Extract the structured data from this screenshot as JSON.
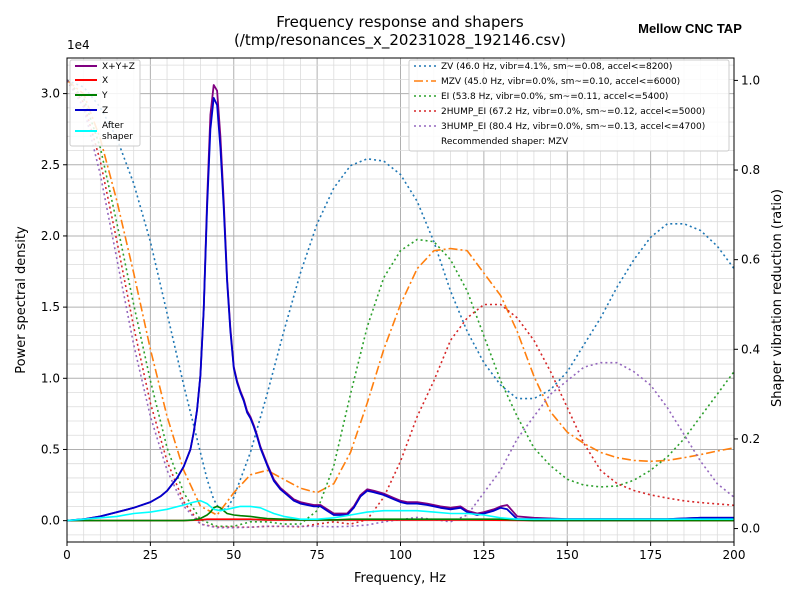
{
  "chart_data": {
    "type": "line",
    "title": "Frequency response and shapers",
    "subtitle": "(/tmp/resonances_x_20231028_192146.csv)",
    "brand": "Mellow CNC TAP",
    "xlabel": "Frequency, Hz",
    "ylabel": "Power spectral density",
    "y2label": "Shaper vibration reduction (ratio)",
    "y_scale_label": "1e4",
    "xlim": [
      0,
      200
    ],
    "ylim": [
      -0.15,
      3.25
    ],
    "y2lim": [
      -0.03,
      1.05
    ],
    "x_ticks": [
      "0",
      "25",
      "50",
      "75",
      "100",
      "125",
      "150",
      "175",
      "200"
    ],
    "y_ticks": [
      "0.0",
      "0.5",
      "1.0",
      "1.5",
      "2.0",
      "2.5",
      "3.0"
    ],
    "y2_ticks": [
      "0.0",
      "0.2",
      "0.4",
      "0.6",
      "0.8",
      "1.0"
    ],
    "grid": true,
    "legend_left": {
      "placement": "top-left",
      "entries": [
        {
          "name": "X+Y+Z",
          "color": "#800080"
        },
        {
          "name": "X",
          "color": "#ff0000"
        },
        {
          "name": "Y",
          "color": "#008000"
        },
        {
          "name": "Z",
          "color": "#0000cc"
        },
        {
          "name": "After",
          "name2": "shaper",
          "color": "#00ffff"
        }
      ]
    },
    "legend_right": {
      "placement": "top-right",
      "entries": [
        {
          "name": "ZV (46.0 Hz, vibr=4.1%, sm~=0.08, accel<=8200)",
          "color": "#1f77b4",
          "dash": "2,3"
        },
        {
          "name": "MZV (45.0 Hz, vibr=0.0%, sm~=0.10, accel<=6000)",
          "color": "#ff7f0e",
          "dash": "9,3,2,3"
        },
        {
          "name": "EI (53.8 Hz, vibr=0.0%, sm~=0.11, accel<=5400)",
          "color": "#2ca02c",
          "dash": "2,3"
        },
        {
          "name": "2HUMP_EI (67.2 Hz, vibr=0.0%, sm~=0.12, accel<=5000)",
          "color": "#d62728",
          "dash": "2,3"
        },
        {
          "name": "3HUMP_EI (80.4 Hz, vibr=0.0%, sm~=0.13, accel<=4700)",
          "color": "#9467bd",
          "dash": "2,3"
        }
      ],
      "note": "Recommended shaper: MZV"
    },
    "psd_series": [
      {
        "name": "X+Y+Z",
        "color": "#800080",
        "width": 1.8,
        "x": [
          0,
          5,
          10,
          15,
          20,
          25,
          28,
          30,
          33,
          35,
          37,
          38,
          39,
          40,
          41,
          42,
          43,
          44,
          45,
          46,
          47,
          48,
          49,
          50,
          51,
          52,
          53,
          54,
          55,
          56,
          57,
          58,
          60,
          62,
          64,
          66,
          68,
          70,
          72,
          74,
          76,
          78,
          80,
          82,
          84,
          86,
          88,
          90,
          92,
          95,
          98,
          100,
          102,
          105,
          108,
          110,
          112,
          115,
          118,
          120,
          123,
          125,
          128,
          130,
          132,
          135,
          140,
          150,
          160,
          170,
          180,
          190,
          195,
          200
        ],
        "y": [
          0,
          0.01,
          0.03,
          0.06,
          0.09,
          0.13,
          0.17,
          0.21,
          0.3,
          0.38,
          0.5,
          0.62,
          0.78,
          1.02,
          1.48,
          2.25,
          2.85,
          3.06,
          3.02,
          2.7,
          2.25,
          1.7,
          1.35,
          1.08,
          0.98,
          0.91,
          0.85,
          0.77,
          0.73,
          0.67,
          0.6,
          0.52,
          0.4,
          0.29,
          0.23,
          0.19,
          0.15,
          0.13,
          0.12,
          0.11,
          0.11,
          0.08,
          0.05,
          0.05,
          0.05,
          0.1,
          0.18,
          0.22,
          0.21,
          0.19,
          0.16,
          0.14,
          0.13,
          0.13,
          0.12,
          0.11,
          0.1,
          0.09,
          0.1,
          0.07,
          0.05,
          0.06,
          0.08,
          0.1,
          0.11,
          0.03,
          0.02,
          0.01,
          0.01,
          0.01,
          0.01,
          0.02,
          0.02,
          0.02
        ]
      },
      {
        "name": "X",
        "color": "#ff0000",
        "width": 1.6,
        "x": [
          0,
          10,
          20,
          30,
          35,
          40,
          42,
          45,
          48,
          50,
          55,
          60,
          65,
          70,
          75,
          80,
          100,
          120,
          140,
          160,
          180,
          200
        ],
        "y": [
          0,
          0,
          0,
          0,
          0,
          0.005,
          0.01,
          0.01,
          0.01,
          0.01,
          0.01,
          0.005,
          0.005,
          0.005,
          0.005,
          0.005,
          0.005,
          0.005,
          0,
          0,
          0,
          0
        ]
      },
      {
        "name": "Y",
        "color": "#008000",
        "width": 1.6,
        "x": [
          0,
          10,
          20,
          30,
          35,
          38,
          40,
          42,
          43,
          44,
          45,
          46,
          47,
          48,
          50,
          52,
          55,
          58,
          60,
          65,
          70,
          80,
          85,
          90,
          100,
          110,
          120,
          130,
          135,
          140,
          160,
          180,
          200
        ],
        "y": [
          0,
          0,
          0,
          0,
          0,
          0.005,
          0.015,
          0.04,
          0.06,
          0.09,
          0.1,
          0.09,
          0.07,
          0.05,
          0.04,
          0.035,
          0.03,
          0.02,
          0.015,
          0.01,
          0.005,
          0.005,
          0.01,
          0.01,
          0.01,
          0.01,
          0.01,
          0.01,
          0.005,
          0,
          0,
          0,
          0
        ]
      },
      {
        "name": "Z",
        "color": "#0000cc",
        "width": 1.8,
        "x": [
          0,
          5,
          10,
          15,
          20,
          25,
          28,
          30,
          33,
          35,
          37,
          38,
          39,
          40,
          41,
          42,
          43,
          44,
          45,
          46,
          47,
          48,
          49,
          50,
          51,
          52,
          53,
          54,
          55,
          56,
          57,
          58,
          60,
          62,
          64,
          66,
          68,
          70,
          72,
          74,
          76,
          78,
          80,
          82,
          84,
          86,
          88,
          90,
          92,
          95,
          98,
          100,
          102,
          105,
          108,
          110,
          112,
          115,
          118,
          120,
          123,
          125,
          128,
          130,
          132,
          135,
          140,
          150,
          160,
          170,
          180,
          190,
          195,
          200
        ],
        "y": [
          0,
          0.01,
          0.03,
          0.06,
          0.09,
          0.13,
          0.17,
          0.21,
          0.3,
          0.38,
          0.5,
          0.62,
          0.78,
          1.02,
          1.48,
          2.2,
          2.75,
          2.97,
          2.92,
          2.62,
          2.2,
          1.68,
          1.33,
          1.07,
          0.97,
          0.9,
          0.84,
          0.76,
          0.72,
          0.66,
          0.59,
          0.51,
          0.39,
          0.28,
          0.22,
          0.18,
          0.14,
          0.12,
          0.11,
          0.1,
          0.1,
          0.07,
          0.04,
          0.04,
          0.04,
          0.09,
          0.17,
          0.21,
          0.2,
          0.18,
          0.15,
          0.13,
          0.12,
          0.12,
          0.11,
          0.1,
          0.09,
          0.08,
          0.09,
          0.06,
          0.04,
          0.05,
          0.07,
          0.09,
          0.08,
          0.01,
          0.01,
          0.01,
          0.01,
          0.01,
          0.01,
          0.02,
          0.02,
          0.02
        ]
      },
      {
        "name": "After shaper",
        "color": "#00ffff",
        "width": 1.6,
        "x": [
          0,
          5,
          10,
          15,
          20,
          25,
          30,
          35,
          38,
          40,
          42,
          44,
          46,
          48,
          50,
          52,
          55,
          58,
          60,
          62,
          65,
          70,
          75,
          80,
          85,
          90,
          95,
          100,
          105,
          110,
          115,
          120,
          125,
          130,
          135,
          140,
          150,
          160,
          170,
          180,
          190,
          200
        ],
        "y": [
          0,
          0.01,
          0.02,
          0.03,
          0.05,
          0.06,
          0.08,
          0.11,
          0.13,
          0.14,
          0.12,
          0.08,
          0.07,
          0.08,
          0.09,
          0.1,
          0.1,
          0.09,
          0.07,
          0.05,
          0.03,
          0.01,
          0.01,
          0.02,
          0.04,
          0.06,
          0.07,
          0.07,
          0.07,
          0.06,
          0.05,
          0.05,
          0.04,
          0.02,
          0.01,
          0.01,
          0.01,
          0.01,
          0.01,
          0.01,
          0.01,
          0.01
        ]
      }
    ],
    "shaper_series": [
      {
        "name": "ZV",
        "color": "#1f77b4",
        "dash": "2,3",
        "x": [
          0,
          5,
          10,
          15,
          20,
          25,
          30,
          35,
          40,
          42,
          44,
          46,
          48,
          50,
          55,
          60,
          65,
          70,
          75,
          80,
          85,
          90,
          95,
          100,
          105,
          110,
          115,
          120,
          125,
          130,
          135,
          140,
          145,
          150,
          155,
          160,
          165,
          170,
          175,
          180,
          185,
          190,
          195,
          200
        ],
        "y": [
          1.0,
          0.985,
          0.94,
          0.87,
          0.77,
          0.64,
          0.48,
          0.32,
          0.17,
          0.11,
          0.065,
          0.04,
          0.045,
          0.07,
          0.17,
          0.3,
          0.44,
          0.57,
          0.68,
          0.76,
          0.81,
          0.825,
          0.82,
          0.79,
          0.73,
          0.64,
          0.53,
          0.44,
          0.37,
          0.32,
          0.29,
          0.29,
          0.31,
          0.35,
          0.41,
          0.47,
          0.54,
          0.6,
          0.65,
          0.68,
          0.68,
          0.665,
          0.63,
          0.58
        ]
      },
      {
        "name": "MZV",
        "color": "#ff7f0e",
        "dash": "9,3,2,3",
        "x": [
          0,
          5,
          10,
          15,
          20,
          25,
          30,
          35,
          40,
          45,
          50,
          55,
          60,
          65,
          70,
          75,
          80,
          85,
          90,
          95,
          100,
          105,
          110,
          115,
          120,
          125,
          130,
          135,
          140,
          145,
          150,
          155,
          160,
          165,
          170,
          175,
          180,
          185,
          190,
          195,
          200
        ],
        "y": [
          1.0,
          0.97,
          0.87,
          0.73,
          0.57,
          0.4,
          0.25,
          0.13,
          0.05,
          0.03,
          0.08,
          0.12,
          0.13,
          0.11,
          0.09,
          0.08,
          0.1,
          0.17,
          0.28,
          0.4,
          0.5,
          0.58,
          0.62,
          0.625,
          0.62,
          0.57,
          0.52,
          0.44,
          0.34,
          0.26,
          0.215,
          0.19,
          0.17,
          0.158,
          0.152,
          0.15,
          0.152,
          0.158,
          0.165,
          0.173,
          0.18
        ]
      },
      {
        "name": "EI",
        "color": "#2ca02c",
        "dash": "2,3",
        "x": [
          0,
          5,
          10,
          15,
          20,
          25,
          30,
          35,
          40,
          45,
          50,
          55,
          60,
          65,
          70,
          75,
          80,
          85,
          90,
          95,
          100,
          105,
          110,
          115,
          120,
          125,
          130,
          135,
          140,
          145,
          150,
          155,
          160,
          165,
          170,
          175,
          180,
          185,
          190,
          195,
          200
        ],
        "y": [
          1.0,
          0.96,
          0.85,
          0.68,
          0.5,
          0.33,
          0.18,
          0.08,
          0.02,
          0.005,
          0.005,
          0.015,
          0.015,
          0.01,
          0.01,
          0.04,
          0.14,
          0.3,
          0.45,
          0.56,
          0.62,
          0.645,
          0.64,
          0.6,
          0.53,
          0.43,
          0.33,
          0.25,
          0.18,
          0.14,
          0.11,
          0.097,
          0.093,
          0.095,
          0.108,
          0.13,
          0.16,
          0.2,
          0.25,
          0.3,
          0.35
        ]
      },
      {
        "name": "2HUMP_EI",
        "color": "#d62728",
        "dash": "2,3",
        "x": [
          0,
          5,
          10,
          15,
          20,
          25,
          30,
          35,
          40,
          45,
          50,
          55,
          60,
          65,
          70,
          75,
          80,
          85,
          90,
          95,
          100,
          105,
          110,
          115,
          120,
          125,
          130,
          135,
          140,
          145,
          150,
          155,
          160,
          165,
          170,
          175,
          180,
          185,
          190,
          195,
          200
        ],
        "y": [
          1.0,
          0.95,
          0.82,
          0.64,
          0.45,
          0.28,
          0.15,
          0.06,
          0.01,
          0.003,
          0.003,
          0.003,
          0.005,
          0.005,
          0.004,
          0.01,
          0.015,
          0.01,
          0.02,
          0.07,
          0.15,
          0.25,
          0.33,
          0.42,
          0.47,
          0.5,
          0.5,
          0.47,
          0.42,
          0.35,
          0.27,
          0.19,
          0.13,
          0.1,
          0.085,
          0.075,
          0.068,
          0.062,
          0.058,
          0.055,
          0.052
        ]
      },
      {
        "name": "3HUMP_EI",
        "color": "#9467bd",
        "dash": "2,3",
        "x": [
          0,
          5,
          10,
          15,
          20,
          25,
          30,
          35,
          40,
          45,
          50,
          55,
          60,
          65,
          70,
          75,
          80,
          85,
          90,
          95,
          100,
          105,
          110,
          115,
          120,
          125,
          130,
          135,
          140,
          145,
          150,
          155,
          160,
          165,
          170,
          175,
          180,
          185,
          190,
          195,
          200
        ],
        "y": [
          1.0,
          0.94,
          0.79,
          0.6,
          0.41,
          0.25,
          0.13,
          0.05,
          0.01,
          0.002,
          0.002,
          0.003,
          0.005,
          0.005,
          0.005,
          0.005,
          0.004,
          0.005,
          0.008,
          0.015,
          0.02,
          0.025,
          0.02,
          0.015,
          0.03,
          0.08,
          0.13,
          0.2,
          0.25,
          0.3,
          0.33,
          0.36,
          0.37,
          0.37,
          0.35,
          0.32,
          0.27,
          0.21,
          0.15,
          0.1,
          0.07
        ]
      }
    ]
  }
}
